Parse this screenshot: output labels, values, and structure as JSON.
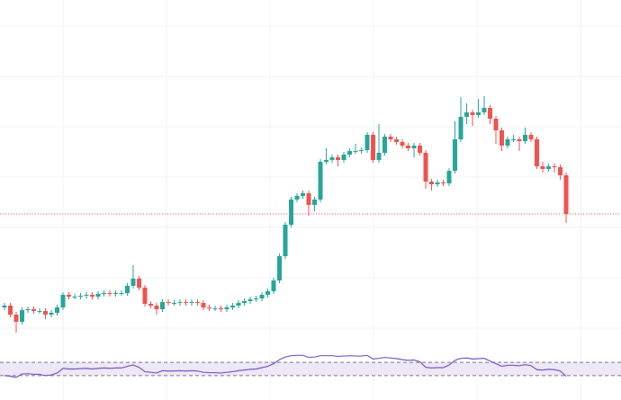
{
  "chart_data": {
    "type": "candlestick",
    "up_color": "#26a69a",
    "down_color": "#ef5350",
    "xlim": [
      -0.77,
      105.38
    ],
    "xticks": [
      10,
      27.7,
      45.4,
      63.1,
      80.8,
      98.5
    ],
    "ylim": [
      0,
      400
    ],
    "yticks": [
      35,
      91,
      147,
      203,
      259,
      315,
      371
    ],
    "grid": true,
    "price_line_color": "#ef5350",
    "open": [
      58,
      60,
      50,
      42,
      55,
      56,
      54,
      54,
      50,
      52,
      58,
      72,
      70,
      70,
      71,
      72,
      70,
      73,
      74,
      73,
      74,
      74,
      82,
      90,
      80,
      62,
      60,
      56,
      64,
      63,
      63,
      64,
      63,
      64,
      63,
      58,
      57,
      57,
      56,
      58,
      60,
      63,
      65,
      67,
      68,
      72,
      76,
      88,
      115,
      150,
      178,
      182,
      185,
      172,
      178,
      220,
      222,
      225,
      222,
      228,
      232,
      232,
      233,
      250,
      222,
      230,
      248,
      245,
      242,
      238,
      235,
      238,
      230,
      198,
      195,
      197,
      196,
      210,
      245,
      270,
      275,
      272,
      275,
      280,
      268,
      255,
      238,
      245,
      245,
      243,
      250,
      245,
      215,
      212,
      215,
      214,
      205
    ],
    "high": [
      63,
      63,
      53,
      58,
      59,
      59,
      57,
      57,
      55,
      61,
      75,
      75,
      73,
      74,
      75,
      75,
      76,
      77,
      77,
      77,
      77,
      85,
      105,
      93,
      83,
      65,
      63,
      67,
      67,
      66,
      67,
      67,
      67,
      67,
      66,
      61,
      60,
      60,
      61,
      63,
      66,
      68,
      70,
      71,
      75,
      79,
      91,
      118,
      153,
      181,
      185,
      188,
      188,
      181,
      223,
      235,
      228,
      228,
      231,
      235,
      240,
      236,
      253,
      253,
      262,
      251,
      251,
      248,
      245,
      241,
      241,
      241,
      233,
      201,
      200,
      200,
      213,
      265,
      292,
      285,
      278,
      290,
      293,
      283,
      271,
      258,
      248,
      250,
      248,
      258,
      253,
      248,
      220,
      218,
      218,
      217,
      208
    ],
    "low": [
      55,
      47,
      30,
      39,
      52,
      51,
      51,
      45,
      47,
      49,
      55,
      67,
      67,
      67,
      68,
      67,
      67,
      70,
      70,
      70,
      71,
      71,
      79,
      77,
      59,
      57,
      50,
      53,
      60,
      60,
      60,
      60,
      60,
      60,
      55,
      54,
      54,
      53,
      53,
      55,
      57,
      60,
      62,
      64,
      65,
      69,
      73,
      85,
      112,
      147,
      175,
      179,
      160,
      165,
      175,
      217,
      219,
      215,
      219,
      225,
      229,
      229,
      230,
      219,
      219,
      227,
      242,
      239,
      235,
      232,
      225,
      227,
      190,
      188,
      192,
      193,
      193,
      207,
      242,
      262,
      260,
      269,
      272,
      262,
      240,
      232,
      235,
      242,
      232,
      240,
      242,
      212,
      208,
      209,
      208,
      200,
      152
    ],
    "close": [
      60,
      50,
      42,
      55,
      56,
      54,
      54,
      50,
      52,
      58,
      72,
      70,
      70,
      71,
      72,
      70,
      73,
      74,
      73,
      74,
      74,
      82,
      90,
      80,
      62,
      60,
      56,
      64,
      63,
      63,
      64,
      63,
      64,
      63,
      58,
      57,
      57,
      56,
      58,
      60,
      63,
      65,
      67,
      68,
      72,
      76,
      88,
      115,
      150,
      178,
      182,
      185,
      172,
      178,
      220,
      222,
      225,
      222,
      228,
      232,
      232,
      233,
      250,
      222,
      230,
      248,
      245,
      242,
      238,
      235,
      238,
      230,
      198,
      195,
      197,
      196,
      210,
      245,
      270,
      275,
      272,
      275,
      280,
      268,
      255,
      238,
      245,
      245,
      243,
      250,
      245,
      215,
      212,
      215,
      214,
      205,
      162
    ],
    "indicator": {
      "type": "line",
      "color": "#7e57c2",
      "band_color": "#ede7f6",
      "ylim": [
        0,
        100
      ],
      "yticks": [
        30,
        70
      ],
      "values": [
        30,
        28,
        25,
        35,
        36,
        34,
        34,
        30,
        32,
        38,
        52,
        50,
        50,
        51,
        52,
        50,
        52,
        53,
        52,
        53,
        53,
        58,
        62,
        55,
        42,
        40,
        38,
        45,
        44,
        44,
        45,
        44,
        45,
        44,
        40,
        39,
        39,
        38,
        40,
        42,
        45,
        47,
        49,
        50,
        54,
        58,
        66,
        78,
        86,
        90,
        91,
        91,
        85,
        86,
        90,
        90,
        90,
        88,
        89,
        90,
        89,
        89,
        91,
        80,
        82,
        85,
        83,
        81,
        78,
        76,
        77,
        72,
        55,
        53,
        54,
        54,
        62,
        76,
        82,
        83,
        80,
        81,
        82,
        74,
        66,
        58,
        61,
        61,
        60,
        63,
        60,
        48,
        47,
        49,
        48,
        44,
        28
      ]
    }
  }
}
